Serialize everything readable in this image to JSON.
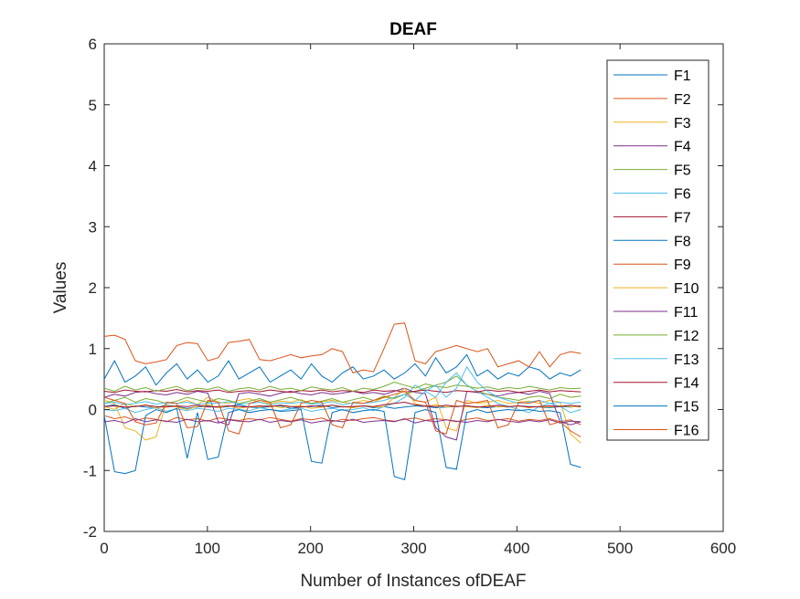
{
  "chart_data": {
    "type": "line",
    "title": "DEAF",
    "xlabel": "Number of Instances ofDEAF",
    "ylabel": "Values",
    "xlim": [
      0,
      600
    ],
    "ylim": [
      -2,
      6
    ],
    "xticks": [
      0,
      100,
      200,
      300,
      400,
      500,
      600
    ],
    "yticks": [
      -2,
      -1,
      0,
      1,
      2,
      3,
      4,
      5,
      6
    ],
    "xtick_labels": [
      "0",
      "100",
      "200",
      "300",
      "400",
      "500",
      "600"
    ],
    "ytick_labels": [
      "-2",
      "-1",
      "0",
      "1",
      "2",
      "3",
      "4",
      "5",
      "6"
    ],
    "grid": false,
    "legend_position": "top-right",
    "num_instances": 462,
    "series": [
      {
        "name": "F1",
        "color": "#0072BD",
        "values": [
          0.05,
          0.08,
          0.02,
          0.06,
          0.04,
          0.03,
          0.07,
          0.05,
          0.02,
          0.04,
          0.06,
          0.03,
          0.05,
          0.08,
          0.04,
          0.03,
          0.05,
          0.06,
          0.02,
          0.04,
          0.05,
          0.07,
          0.03,
          0.05,
          0.04,
          0.06,
          0.03,
          0.05,
          0.02,
          0.04,
          0.06,
          0.05,
          0.03,
          0.04,
          0.05,
          0.06,
          0.04,
          0.03,
          0.05,
          0.04,
          0.06,
          0.05,
          0.04,
          0.03,
          0.05,
          0.04,
          0.06
        ]
      },
      {
        "name": "F2",
        "color": "#D95319",
        "values": [
          -0.1,
          -0.15,
          -0.12,
          -0.18,
          -0.14,
          -0.16,
          -0.2,
          -0.13,
          -0.17,
          -0.15,
          -0.19,
          -0.14,
          -0.16,
          -0.18,
          -0.15,
          -0.17,
          -0.13,
          -0.16,
          -0.19,
          -0.15,
          -0.17,
          -0.14,
          -0.2,
          -0.16,
          -0.18,
          -0.15,
          -0.13,
          -0.17,
          -0.19,
          -0.16,
          -0.14,
          -0.18,
          -0.15,
          -0.17,
          -0.2,
          -0.16,
          -0.14,
          -0.18,
          -0.17,
          -0.15,
          -0.19,
          -0.16,
          -0.18,
          -0.15,
          -0.2,
          -0.17,
          -0.25
        ]
      },
      {
        "name": "F3",
        "color": "#EDB120",
        "values": [
          0.15,
          0.1,
          -0.3,
          -0.35,
          -0.5,
          -0.45,
          0.12,
          0.1,
          0.15,
          0.08,
          0.2,
          0.12,
          0.1,
          0.15,
          0.18,
          0.12,
          0.1,
          0.14,
          0.12,
          0.16,
          0.1,
          0.13,
          0.15,
          0.12,
          0.1,
          0.15,
          0.12,
          0.2,
          0.18,
          0.25,
          0.15,
          0.12,
          0.2,
          -0.3,
          -0.35,
          0.15,
          0.1,
          0.12,
          0.15,
          0.1,
          0.12,
          0.14,
          0.1,
          0.15,
          0.12,
          -0.4,
          -0.55
        ]
      },
      {
        "name": "F4",
        "color": "#7E2F8E",
        "values": [
          0.2,
          0.25,
          0.22,
          0.28,
          0.3,
          0.26,
          0.24,
          0.28,
          0.25,
          0.3,
          0.27,
          -0.2,
          -0.25,
          0.26,
          0.28,
          0.25,
          0.22,
          0.27,
          0.3,
          0.26,
          0.24,
          0.28,
          0.25,
          0.27,
          0.3,
          0.26,
          0.28,
          0.25,
          0.3,
          0.35,
          0.28,
          0.26,
          -0.3,
          -0.45,
          -0.5,
          0.3,
          0.28,
          0.25,
          0.22,
          0.26,
          0.28,
          0.25,
          0.3,
          0.26,
          -0.2,
          -0.25,
          -0.2
        ]
      },
      {
        "name": "F5",
        "color": "#77AC30",
        "values": [
          0.1,
          0.15,
          0.2,
          0.12,
          0.18,
          0.15,
          0.1,
          0.14,
          0.2,
          0.16,
          0.12,
          0.18,
          0.15,
          0.1,
          0.14,
          0.18,
          0.12,
          0.16,
          0.2,
          0.15,
          0.1,
          0.14,
          0.18,
          0.12,
          0.16,
          0.2,
          0.15,
          0.22,
          0.18,
          0.25,
          0.3,
          0.35,
          0.4,
          0.45,
          0.55,
          0.4,
          0.3,
          0.25,
          0.2,
          0.18,
          0.15,
          0.2,
          0.22,
          0.18,
          0.25,
          0.2,
          0.22
        ]
      },
      {
        "name": "F6",
        "color": "#4DBEEE",
        "values": [
          0.0,
          -0.02,
          0.02,
          -0.05,
          0.0,
          0.03,
          -0.03,
          0.01,
          -0.02,
          0.02,
          0.0,
          -0.03,
          0.02,
          0.0,
          -0.02,
          0.03,
          0.0,
          -0.02,
          0.01,
          0.02,
          -0.03,
          0.0,
          0.02,
          -0.01,
          0.0,
          0.03,
          -0.02,
          0.05,
          0.1,
          0.2,
          0.4,
          0.3,
          0.2,
          0.45,
          0.6,
          0.4,
          0.3,
          0.2,
          0.1,
          0.05,
          0.0,
          -0.05,
          0.05,
          0.1,
          0.05,
          -0.05,
          0.0
        ]
      },
      {
        "name": "F7",
        "color": "#A2142F",
        "values": [
          0.3,
          0.28,
          0.32,
          0.3,
          0.29,
          0.31,
          0.3,
          0.33,
          0.29,
          0.31,
          0.3,
          0.32,
          0.28,
          0.3,
          0.31,
          0.29,
          0.32,
          0.3,
          0.28,
          0.31,
          0.3,
          0.32,
          0.29,
          0.31,
          0.3,
          0.28,
          0.32,
          0.3,
          0.31,
          0.29,
          0.3,
          0.32,
          0.3,
          0.28,
          0.31,
          0.3,
          0.29,
          0.32,
          0.3,
          0.31,
          0.28,
          0.3,
          0.32,
          0.29,
          0.31,
          0.3,
          0.29
        ]
      },
      {
        "name": "F8",
        "color": "#0072BD",
        "values": [
          0.5,
          0.8,
          0.45,
          0.55,
          0.7,
          0.4,
          0.6,
          0.75,
          0.5,
          0.65,
          0.45,
          0.55,
          0.8,
          0.5,
          0.6,
          0.7,
          0.45,
          0.55,
          0.65,
          0.5,
          0.75,
          0.55,
          0.45,
          0.6,
          0.7,
          0.5,
          0.55,
          0.65,
          0.5,
          0.6,
          0.75,
          0.55,
          0.85,
          0.6,
          0.7,
          0.9,
          0.55,
          0.65,
          0.5,
          0.6,
          0.55,
          0.7,
          0.65,
          0.5,
          0.6,
          0.55,
          0.65
        ]
      },
      {
        "name": "F9",
        "color": "#D95319",
        "values": [
          1.2,
          1.22,
          1.15,
          0.8,
          0.75,
          0.78,
          0.82,
          1.05,
          1.1,
          1.08,
          0.8,
          0.85,
          1.1,
          1.12,
          1.15,
          0.82,
          0.8,
          0.85,
          0.9,
          0.85,
          0.88,
          0.9,
          1.0,
          0.95,
          0.6,
          0.65,
          0.62,
          1.0,
          1.4,
          1.42,
          0.8,
          0.75,
          0.95,
          1.0,
          1.05,
          1.0,
          0.95,
          1.0,
          0.7,
          0.75,
          0.8,
          0.7,
          0.95,
          0.7,
          0.9,
          0.95,
          0.92
        ]
      },
      {
        "name": "F10",
        "color": "#EDB120",
        "values": [
          0.05,
          0.0,
          0.1,
          0.05,
          0.08,
          0.02,
          0.06,
          0.04,
          0.0,
          0.05,
          0.08,
          0.03,
          0.06,
          0.02,
          0.05,
          0.04,
          0.07,
          0.03,
          0.05,
          0.06,
          0.02,
          0.04,
          0.07,
          0.05,
          0.03,
          0.06,
          0.04,
          0.05,
          0.2,
          0.35,
          0.1,
          0.05,
          0.08,
          0.04,
          0.06,
          0.05,
          0.03,
          0.07,
          0.04,
          0.05,
          0.06,
          0.03,
          0.05,
          0.04,
          0.06,
          0.05,
          0.04
        ]
      },
      {
        "name": "F11",
        "color": "#7E2F8E",
        "values": [
          -0.2,
          -0.18,
          -0.22,
          -0.15,
          -0.2,
          -0.17,
          -0.19,
          -0.21,
          -0.16,
          -0.2,
          -0.18,
          -0.22,
          -0.17,
          -0.19,
          -0.2,
          -0.16,
          -0.21,
          -0.18,
          -0.2,
          -0.17,
          -0.22,
          -0.19,
          -0.18,
          -0.2,
          -0.16,
          -0.21,
          -0.19,
          -0.18,
          -0.2,
          -0.15,
          -0.22,
          -0.18,
          -0.2,
          -0.17,
          -0.19,
          -0.21,
          -0.18,
          -0.2,
          -0.16,
          -0.19,
          -0.21,
          -0.18,
          -0.2,
          -0.17,
          -0.22,
          -0.19,
          -0.2
        ]
      },
      {
        "name": "F12",
        "color": "#77AC30",
        "values": [
          0.35,
          0.3,
          0.38,
          0.32,
          0.36,
          0.3,
          0.34,
          0.38,
          0.31,
          0.35,
          0.33,
          0.37,
          0.3,
          0.34,
          0.36,
          0.32,
          0.38,
          0.33,
          0.35,
          0.31,
          0.37,
          0.34,
          0.32,
          0.36,
          0.3,
          0.35,
          0.33,
          0.38,
          0.45,
          0.4,
          0.35,
          0.42,
          0.38,
          0.36,
          0.4,
          0.38,
          0.35,
          0.37,
          0.33,
          0.36,
          0.34,
          0.38,
          0.35,
          0.32,
          0.36,
          0.34,
          0.35
        ]
      },
      {
        "name": "F13",
        "color": "#4DBEEE",
        "values": [
          0.1,
          0.12,
          0.08,
          0.1,
          0.13,
          0.09,
          0.11,
          0.1,
          0.12,
          0.08,
          0.11,
          0.1,
          0.13,
          0.09,
          0.1,
          0.12,
          0.08,
          0.11,
          0.1,
          0.12,
          0.09,
          0.1,
          0.13,
          0.08,
          0.11,
          0.1,
          0.12,
          0.15,
          0.2,
          0.25,
          0.15,
          0.3,
          0.4,
          0.2,
          0.35,
          0.7,
          0.45,
          0.3,
          0.2,
          0.15,
          0.1,
          0.12,
          0.15,
          0.1,
          0.12,
          0.1,
          0.12
        ]
      },
      {
        "name": "F14",
        "color": "#A2142F",
        "values": [
          0.05,
          0.06,
          0.04,
          0.05,
          0.07,
          0.05,
          0.04,
          0.06,
          0.05,
          0.07,
          0.04,
          0.05,
          0.06,
          0.05,
          0.04,
          0.06,
          0.05,
          0.07,
          0.05,
          0.04,
          0.06,
          0.05,
          0.07,
          0.04,
          0.05,
          0.06,
          0.05,
          0.08,
          0.1,
          0.12,
          0.08,
          0.06,
          0.05,
          0.07,
          0.05,
          0.06,
          0.04,
          0.05,
          0.07,
          0.05,
          0.06,
          0.04,
          0.05,
          0.06,
          0.05,
          0.07,
          0.05
        ]
      },
      {
        "name": "F15",
        "color": "#0072BD",
        "values": [
          -0.1,
          -1.02,
          -1.05,
          -1.0,
          -0.1,
          0.0,
          -0.05,
          0.02,
          -0.8,
          -0.05,
          -0.82,
          -0.78,
          -0.05,
          0.0,
          -0.05,
          -0.02,
          0.0,
          -0.03,
          -0.02,
          0.0,
          -0.85,
          -0.88,
          -0.05,
          0.0,
          -0.05,
          -0.02,
          0.0,
          -0.03,
          -1.1,
          -1.15,
          -0.05,
          0.0,
          -0.05,
          -0.95,
          -0.98,
          -0.05,
          0.0,
          -0.05,
          -0.02,
          0.0,
          -0.02,
          0.0,
          -0.03,
          -0.02,
          -0.05,
          -0.9,
          -0.95
        ]
      },
      {
        "name": "F16",
        "color": "#D95319",
        "values": [
          0.2,
          0.15,
          0.1,
          -0.2,
          -0.25,
          -0.22,
          0.12,
          0.1,
          -0.3,
          -0.28,
          0.15,
          0.12,
          -0.35,
          -0.4,
          0.1,
          0.15,
          0.12,
          -0.3,
          -0.25,
          0.1,
          0.15,
          0.12,
          -0.25,
          -0.3,
          0.12,
          0.1,
          0.15,
          0.2,
          0.25,
          0.3,
          0.15,
          0.12,
          -0.35,
          -0.4,
          0.15,
          0.1,
          0.12,
          0.15,
          -0.3,
          -0.25,
          0.12,
          0.1,
          0.15,
          -0.25,
          -0.2,
          -0.35,
          -0.45
        ]
      }
    ]
  }
}
